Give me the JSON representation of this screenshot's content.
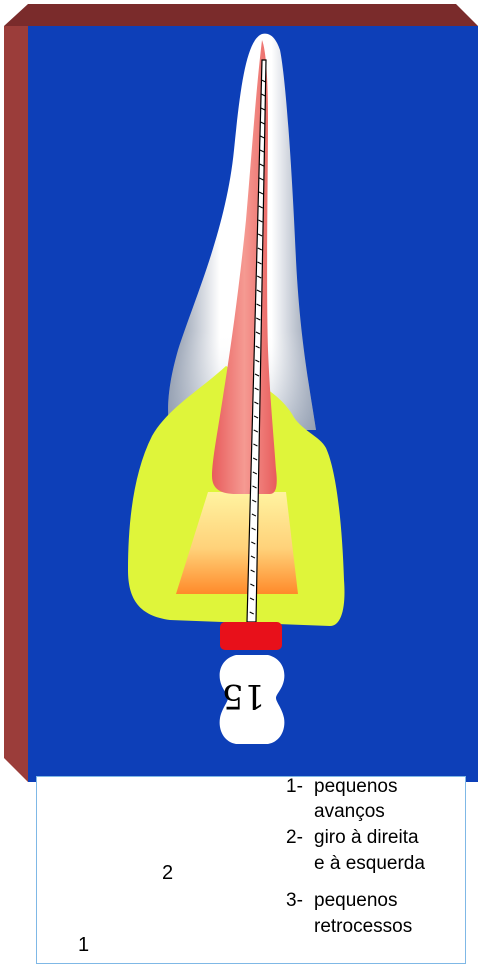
{
  "file": {
    "size_label": "15"
  },
  "legend": {
    "steps": [
      {
        "number": "1-",
        "lines": [
          "pequenos",
          "avanços"
        ]
      },
      {
        "number": "2-",
        "lines": [
          "giro à direita",
          "e à esquerda"
        ]
      },
      {
        "number": "3-",
        "lines": [
          "pequenos",
          "retrocessos"
        ]
      }
    ],
    "arrow_labels": {
      "advance": "1",
      "rotation": "2"
    }
  },
  "colors": {
    "panel_face": "#0d3fb8",
    "panel_side": "#9b3d3a",
    "tooth_enamel": "#f4f6fa",
    "canal": "#f07a78",
    "crown_fill": "#dff53a",
    "pulp_chamber": "#ffb347",
    "stopper": "#e8101a",
    "handle": "#ffffff",
    "legend_border": "#7fb8e6"
  }
}
